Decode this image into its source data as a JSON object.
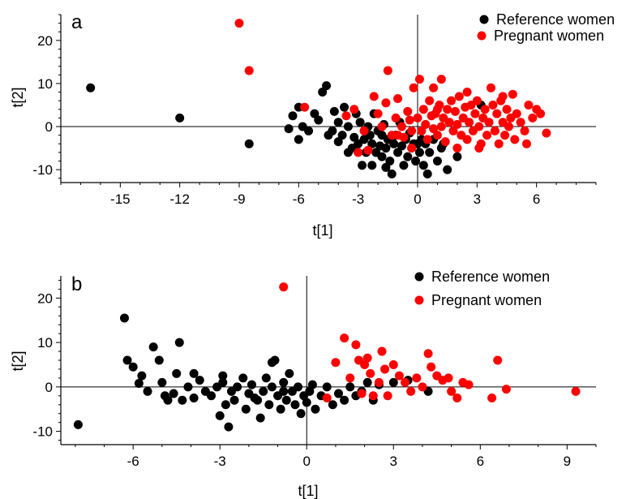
{
  "colors": {
    "reference": "#000000",
    "pregnant": "#ff0000"
  },
  "chart_data": [
    {
      "type": "scatter",
      "panel_label": "a",
      "xlabel": "t[1]",
      "ylabel": "t[2]",
      "xlim": [
        -18,
        9
      ],
      "ylim": [
        -13,
        26
      ],
      "xticks": [
        -15,
        -12,
        -9,
        -6,
        -3,
        0,
        3,
        6
      ],
      "yticks": [
        -10,
        0,
        10,
        20
      ],
      "legend": [
        "Reference women",
        "Pregnant women"
      ],
      "series": [
        {
          "name": "Reference women",
          "color": "#000000",
          "points": [
            [
              -16.5,
              9
            ],
            [
              -12,
              2
            ],
            [
              -8.5,
              -4
            ],
            [
              -6.5,
              -0.5
            ],
            [
              -6.3,
              2.5
            ],
            [
              -6,
              4.5
            ],
            [
              -6,
              -3
            ],
            [
              -5.8,
              0
            ],
            [
              -5.5,
              -1
            ],
            [
              -5.2,
              3
            ],
            [
              -5,
              1.5
            ],
            [
              -4.8,
              8
            ],
            [
              -4.6,
              9.5
            ],
            [
              -4.5,
              -2
            ],
            [
              -4.3,
              -1
            ],
            [
              -4.2,
              3.5
            ],
            [
              -4,
              -3.5
            ],
            [
              -4,
              1
            ],
            [
              -3.8,
              -2
            ],
            [
              -3.7,
              4.5
            ],
            [
              -3.5,
              0
            ],
            [
              -3.3,
              -5
            ],
            [
              -3.2,
              -2.5
            ],
            [
              -3.1,
              3
            ],
            [
              -3,
              -4
            ],
            [
              -2.9,
              1
            ],
            [
              -2.8,
              -9
            ],
            [
              -2.7,
              -3
            ],
            [
              -2.6,
              -6
            ],
            [
              -2.5,
              0
            ],
            [
              -2.4,
              -2
            ],
            [
              -2.3,
              -4
            ],
            [
              -2.2,
              3
            ],
            [
              -2.1,
              -6
            ],
            [
              -2,
              -1
            ],
            [
              -1.9,
              -4.5
            ],
            [
              -1.8,
              -2
            ],
            [
              -1.8,
              -7
            ],
            [
              -1.7,
              0.5
            ],
            [
              -1.6,
              -5
            ],
            [
              -1.5,
              -3
            ],
            [
              -1.4,
              -8
            ],
            [
              -1.3,
              -11
            ],
            [
              -1.2,
              -4
            ],
            [
              -1.1,
              -2
            ],
            [
              -1,
              -6
            ],
            [
              -0.9,
              1
            ],
            [
              -0.8,
              -4.5
            ],
            [
              -0.7,
              -9
            ],
            [
              -0.6,
              -3
            ],
            [
              -0.5,
              -7
            ],
            [
              -0.4,
              -1.5
            ],
            [
              -0.3,
              -5
            ],
            [
              -0.2,
              -4
            ],
            [
              -0.1,
              -8
            ],
            [
              0,
              -4
            ],
            [
              0.1,
              -6
            ],
            [
              0.2,
              -3
            ],
            [
              0.3,
              -9
            ],
            [
              0.4,
              -4
            ],
            [
              0.5,
              -11
            ],
            [
              0.6,
              -6
            ],
            [
              0.8,
              -3
            ],
            [
              1,
              -8
            ],
            [
              1.2,
              -5
            ],
            [
              1.5,
              -10
            ],
            [
              2,
              -7
            ],
            [
              -2.3,
              -9
            ],
            [
              -1.6,
              -9.5
            ],
            [
              -3.5,
              -6
            ],
            [
              3.2,
              5
            ],
            [
              1.3,
              -4
            ]
          ]
        },
        {
          "name": "Pregnant women",
          "color": "#ff0000",
          "points": [
            [
              -9,
              24
            ],
            [
              -8.5,
              13
            ],
            [
              -5.7,
              4.5
            ],
            [
              -3.6,
              2.5
            ],
            [
              -3.2,
              4
            ],
            [
              -3,
              -6
            ],
            [
              -2.7,
              -1
            ],
            [
              -2.5,
              -5.5
            ],
            [
              -2.2,
              7
            ],
            [
              -2,
              3
            ],
            [
              -1.8,
              0
            ],
            [
              -1.6,
              5.5
            ],
            [
              -1.5,
              13
            ],
            [
              -1.3,
              -2
            ],
            [
              -1.1,
              2
            ],
            [
              -1,
              6.5
            ],
            [
              -0.8,
              0
            ],
            [
              -0.7,
              -2.5
            ],
            [
              -0.5,
              3.5
            ],
            [
              -0.4,
              1.5
            ],
            [
              -0.3,
              -1
            ],
            [
              -0.2,
              9
            ],
            [
              0,
              2
            ],
            [
              0.1,
              11
            ],
            [
              0.2,
              -1
            ],
            [
              0.3,
              4
            ],
            [
              0.4,
              0.5
            ],
            [
              0.5,
              -3
            ],
            [
              0.6,
              6
            ],
            [
              0.7,
              2.5
            ],
            [
              0.8,
              -0.5
            ],
            [
              0.9,
              3
            ],
            [
              1,
              -2
            ],
            [
              1.1,
              5
            ],
            [
              1.2,
              0
            ],
            [
              1.3,
              2
            ],
            [
              1.4,
              -3.5
            ],
            [
              1.5,
              4
            ],
            [
              1.6,
              1
            ],
            [
              1.7,
              6
            ],
            [
              1.8,
              -1
            ],
            [
              1.9,
              3.5
            ],
            [
              2,
              0.5
            ],
            [
              2.1,
              7
            ],
            [
              2.2,
              -2
            ],
            [
              2.3,
              2
            ],
            [
              2.4,
              4.5
            ],
            [
              2.5,
              -3
            ],
            [
              2.6,
              1
            ],
            [
              2.7,
              5
            ],
            [
              2.8,
              -1
            ],
            [
              2.9,
              3
            ],
            [
              3,
              6
            ],
            [
              3.1,
              0
            ],
            [
              3.2,
              -4
            ],
            [
              3.3,
              2
            ],
            [
              3.4,
              4
            ],
            [
              3.5,
              -2
            ],
            [
              3.6,
              1
            ],
            [
              3.7,
              9
            ],
            [
              3.8,
              5
            ],
            [
              3.9,
              -1
            ],
            [
              4,
              3
            ],
            [
              4.1,
              -4
            ],
            [
              4.2,
              6
            ],
            [
              4.3,
              1
            ],
            [
              4.4,
              -2
            ],
            [
              4.5,
              4
            ],
            [
              4.6,
              0
            ],
            [
              4.7,
              2
            ],
            [
              4.8,
              7.5
            ],
            [
              4.9,
              -3
            ],
            [
              5,
              3
            ],
            [
              5.2,
              1
            ],
            [
              5.4,
              -1
            ],
            [
              5.6,
              5
            ],
            [
              5.8,
              2
            ],
            [
              6,
              4
            ],
            [
              6.2,
              3
            ],
            [
              6.5,
              -1.5
            ],
            [
              1.2,
              11
            ],
            [
              0.8,
              9
            ],
            [
              -0.3,
              -5
            ],
            [
              2,
              -5
            ],
            [
              1,
              4
            ],
            [
              -1,
              -2
            ],
            [
              2.5,
              8
            ],
            [
              3.1,
              -5
            ],
            [
              5.5,
              -4
            ],
            [
              4.3,
              7
            ]
          ]
        }
      ]
    },
    {
      "type": "scatter",
      "panel_label": "b",
      "xlabel": "t[1]",
      "ylabel": "t[2]",
      "xlim": [
        -8.5,
        10
      ],
      "ylim": [
        -13,
        25
      ],
      "xticks": [
        -6,
        -3,
        0,
        3,
        6,
        9
      ],
      "yticks": [
        -10,
        0,
        10,
        20
      ],
      "legend": [
        "Reference women",
        "Pregnant women"
      ],
      "series": [
        {
          "name": "Reference women",
          "color": "#000000",
          "points": [
            [
              -7.9,
              -8.5
            ],
            [
              -6.3,
              15.5
            ],
            [
              -6.2,
              6
            ],
            [
              -6,
              4.5
            ],
            [
              -5.8,
              0.8
            ],
            [
              -5.7,
              2.5
            ],
            [
              -5.5,
              -1
            ],
            [
              -5.3,
              9
            ],
            [
              -5.1,
              6
            ],
            [
              -5,
              1
            ],
            [
              -4.9,
              -2
            ],
            [
              -4.8,
              -3
            ],
            [
              -4.6,
              -1.5
            ],
            [
              -4.5,
              3
            ],
            [
              -4.4,
              10
            ],
            [
              -4.3,
              -3
            ],
            [
              -4.1,
              0
            ],
            [
              -3.9,
              -2.5
            ],
            [
              -3.7,
              1.5
            ],
            [
              -3.5,
              -1
            ],
            [
              -3.3,
              -2
            ],
            [
              -3.1,
              0
            ],
            [
              -3,
              -6.5
            ],
            [
              -2.9,
              2.5
            ],
            [
              -2.8,
              -4
            ],
            [
              -2.7,
              -9
            ],
            [
              -2.6,
              -1
            ],
            [
              -2.5,
              -3
            ],
            [
              -2.4,
              0
            ],
            [
              -2.2,
              2
            ],
            [
              -2.1,
              -5
            ],
            [
              -2,
              -1.5
            ],
            [
              -1.9,
              0.5
            ],
            [
              -1.7,
              -3
            ],
            [
              -1.6,
              -7
            ],
            [
              -1.5,
              -1
            ],
            [
              -1.4,
              2
            ],
            [
              -1.3,
              -4
            ],
            [
              -1.2,
              0
            ],
            [
              -1.1,
              6
            ],
            [
              -1,
              -2
            ],
            [
              -0.9,
              -5
            ],
            [
              -0.8,
              1
            ],
            [
              -0.7,
              -3
            ],
            [
              -0.6,
              3
            ],
            [
              -0.5,
              -1
            ],
            [
              -0.4,
              -4
            ],
            [
              -0.3,
              0
            ],
            [
              -0.2,
              -6
            ],
            [
              -0.1,
              -2
            ],
            [
              0,
              -3.5
            ],
            [
              0.1,
              -1
            ],
            [
              0.3,
              -5
            ],
            [
              0.5,
              -2
            ],
            [
              0.7,
              0
            ],
            [
              0.9,
              -4
            ],
            [
              1.1,
              -1.5
            ],
            [
              1.3,
              -3
            ],
            [
              1.5,
              0
            ],
            [
              1.7,
              -2
            ],
            [
              1.9,
              -1
            ],
            [
              2.1,
              1
            ],
            [
              2.3,
              -3
            ],
            [
              2.5,
              0.5
            ],
            [
              3,
              1
            ],
            [
              3.5,
              1.5
            ],
            [
              4.2,
              -1
            ],
            [
              -1.2,
              5.5
            ],
            [
              -2.9,
              1
            ],
            [
              -3.9,
              3
            ],
            [
              -0.8,
              -1
            ],
            [
              0.2,
              0.5
            ],
            [
              -1.8,
              -2.5
            ]
          ]
        },
        {
          "name": "Pregnant women",
          "color": "#ff0000",
          "points": [
            [
              -0.8,
              22.5
            ],
            [
              0.7,
              -2.5
            ],
            [
              1,
              5.5
            ],
            [
              1.3,
              11
            ],
            [
              1.5,
              2
            ],
            [
              1.7,
              9.5
            ],
            [
              1.8,
              6
            ],
            [
              1.9,
              -1.5
            ],
            [
              2,
              5
            ],
            [
              2.1,
              6.5
            ],
            [
              2.2,
              3
            ],
            [
              2.3,
              -2
            ],
            [
              2.5,
              1
            ],
            [
              2.6,
              8
            ],
            [
              2.7,
              4
            ],
            [
              2.8,
              -2
            ],
            [
              3,
              5
            ],
            [
              3.2,
              2.5
            ],
            [
              3.4,
              1
            ],
            [
              3.6,
              -1
            ],
            [
              4,
              0
            ],
            [
              4.2,
              7.5
            ],
            [
              4.3,
              4.5
            ],
            [
              4.5,
              2.5
            ],
            [
              4.7,
              1.5
            ],
            [
              5,
              -1
            ],
            [
              5.2,
              -2.5
            ],
            [
              5.4,
              1
            ],
            [
              5.6,
              0.5
            ],
            [
              6.4,
              -2.5
            ],
            [
              6.6,
              6
            ],
            [
              6.9,
              -0.5
            ],
            [
              9.3,
              -1
            ],
            [
              3.8,
              2
            ],
            [
              4.9,
              2
            ]
          ]
        }
      ]
    }
  ]
}
